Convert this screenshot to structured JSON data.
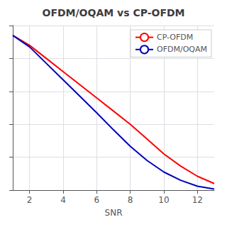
{
  "chart_data": {
    "type": "line",
    "title": "OFDM/OQAM vs CP-OFDM",
    "xlabel": "SNR",
    "x": [
      1,
      2,
      3,
      4,
      5,
      6,
      7,
      8,
      9,
      10,
      11,
      12,
      13
    ],
    "series": [
      {
        "name": "CP-OFDM",
        "color": "#ff0000",
        "values": [
          0.47,
          0.44,
          0.4,
          0.36,
          0.32,
          0.28,
          0.24,
          0.2,
          0.155,
          0.11,
          0.073,
          0.042,
          0.02
        ]
      },
      {
        "name": "OFDM/OQAM",
        "color": "#0000bb",
        "values": [
          0.47,
          0.435,
          0.385,
          0.335,
          0.285,
          0.235,
          0.183,
          0.133,
          0.09,
          0.055,
          0.03,
          0.012,
          0.003
        ]
      }
    ],
    "xlim": [
      1,
      13
    ],
    "ylim": [
      0,
      0.5
    ],
    "xticks": [
      2,
      4,
      6,
      8,
      10,
      12
    ],
    "yticks": [
      0,
      0.1,
      0.2,
      0.3,
      0.4,
      0.5
    ],
    "grid": true,
    "legend": "upper right",
    "tick_labels": "x"
  }
}
